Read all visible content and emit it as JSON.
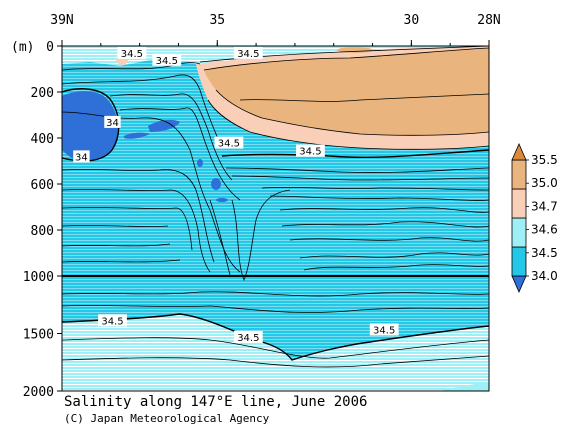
{
  "chart_data": {
    "type": "heatmap",
    "title": "Salinity along 147°E line, June 2006",
    "credit": "(C) Japan Meteorological Agency",
    "x_axis": {
      "label": "",
      "range": [
        39,
        28
      ],
      "ticks": [
        {
          "value": 39,
          "label": "39N"
        },
        {
          "value": 35,
          "label": "35"
        },
        {
          "value": 30,
          "label": "30"
        },
        {
          "value": 28,
          "label": "28N"
        }
      ]
    },
    "y_axis": {
      "unit_label": "(m)",
      "range_upper": [
        0,
        1000
      ],
      "range_lower": [
        1000,
        2000
      ],
      "ticks": [
        {
          "value": 0,
          "label": "0"
        },
        {
          "value": 200,
          "label": "200"
        },
        {
          "value": 400,
          "label": "400"
        },
        {
          "value": 600,
          "label": "600"
        },
        {
          "value": 800,
          "label": "800"
        },
        {
          "value": 1000,
          "label": "1000"
        },
        {
          "value": 1500,
          "label": "1500"
        },
        {
          "value": 2000,
          "label": "2000"
        }
      ]
    },
    "colorbar": {
      "levels": [
        {
          "label": "35.5"
        },
        {
          "label": "35.0"
        },
        {
          "label": "34.7"
        },
        {
          "label": "34.6"
        },
        {
          "label": "34.5"
        },
        {
          "label": "34.0"
        }
      ],
      "colors": [
        "#2f6fd8",
        "#22c8e6",
        "#9ff0f6",
        "#f9cfb8",
        "#eab47e",
        "#dc8a3a"
      ]
    },
    "contour_labels": [
      {
        "text": "34.5",
        "lat": 37.2,
        "depth": 30
      },
      {
        "text": "34.5",
        "lat": 36.3,
        "depth": 60
      },
      {
        "text": "34.5",
        "lat": 34.2,
        "depth": 30
      },
      {
        "text": "34",
        "lat": 37.7,
        "depth": 330
      },
      {
        "text": "34",
        "lat": 38.5,
        "depth": 480
      },
      {
        "text": "34.5",
        "lat": 34.7,
        "depth": 420
      },
      {
        "text": "34.5",
        "lat": 32.6,
        "depth": 455
      },
      {
        "text": "34.5",
        "lat": 37.7,
        "depth": 1385
      },
      {
        "text": "34.5",
        "lat": 34.2,
        "depth": 1530
      },
      {
        "text": "34.5",
        "lat": 30.7,
        "depth": 1465
      }
    ]
  }
}
